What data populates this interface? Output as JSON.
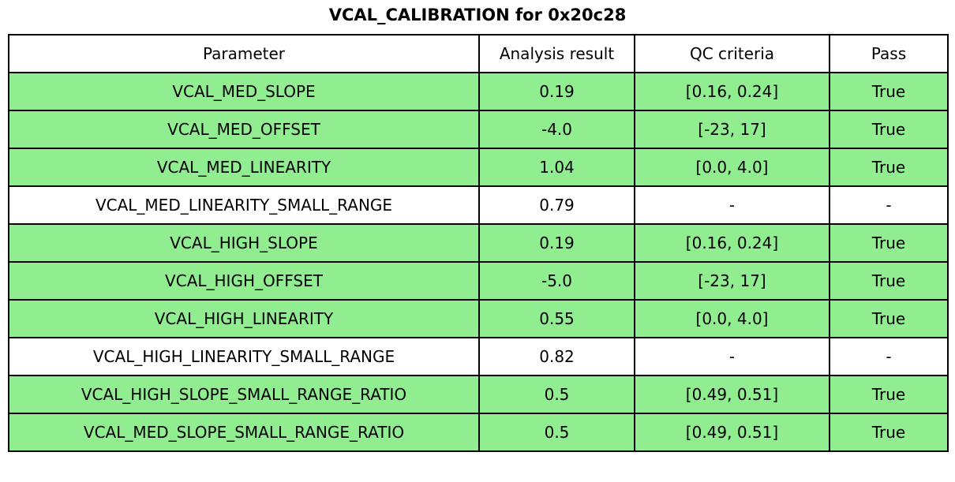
{
  "title": "VCAL_CALIBRATION for 0x20c28",
  "table": {
    "columns": [
      "Parameter",
      "Analysis result",
      "QC criteria",
      "Pass"
    ],
    "rows": [
      {
        "parameter": "VCAL_MED_SLOPE",
        "result": "0.19",
        "criteria": "[0.16, 0.24]",
        "pass": "True",
        "highlight": true
      },
      {
        "parameter": "VCAL_MED_OFFSET",
        "result": "-4.0",
        "criteria": "[-23, 17]",
        "pass": "True",
        "highlight": true
      },
      {
        "parameter": "VCAL_MED_LINEARITY",
        "result": "1.04",
        "criteria": "[0.0, 4.0]",
        "pass": "True",
        "highlight": true
      },
      {
        "parameter": "VCAL_MED_LINEARITY_SMALL_RANGE",
        "result": "0.79",
        "criteria": "-",
        "pass": "-",
        "highlight": false
      },
      {
        "parameter": "VCAL_HIGH_SLOPE",
        "result": "0.19",
        "criteria": "[0.16, 0.24]",
        "pass": "True",
        "highlight": true
      },
      {
        "parameter": "VCAL_HIGH_OFFSET",
        "result": "-5.0",
        "criteria": "[-23, 17]",
        "pass": "True",
        "highlight": true
      },
      {
        "parameter": "VCAL_HIGH_LINEARITY",
        "result": "0.55",
        "criteria": "[0.0, 4.0]",
        "pass": "True",
        "highlight": true
      },
      {
        "parameter": "VCAL_HIGH_LINEARITY_SMALL_RANGE",
        "result": "0.82",
        "criteria": "-",
        "pass": "-",
        "highlight": false
      },
      {
        "parameter": "VCAL_HIGH_SLOPE_SMALL_RANGE_RATIO",
        "result": "0.5",
        "criteria": "[0.49, 0.51]",
        "pass": "True",
        "highlight": true
      },
      {
        "parameter": "VCAL_MED_SLOPE_SMALL_RANGE_RATIO",
        "result": "0.5",
        "criteria": "[0.49, 0.51]",
        "pass": "True",
        "highlight": true
      }
    ]
  },
  "colors": {
    "pass_row_green": "#90ee90",
    "neutral_row_white": "#ffffff",
    "border_black": "#000000"
  },
  "chart_data": {
    "type": "table",
    "title": "VCAL_CALIBRATION for 0x20c28",
    "columns": [
      "Parameter",
      "Analysis result",
      "QC criteria",
      "Pass"
    ],
    "rows": [
      [
        "VCAL_MED_SLOPE",
        "0.19",
        "[0.16, 0.24]",
        "True"
      ],
      [
        "VCAL_MED_OFFSET",
        "-4.0",
        "[-23, 17]",
        "True"
      ],
      [
        "VCAL_MED_LINEARITY",
        "1.04",
        "[0.0, 4.0]",
        "True"
      ],
      [
        "VCAL_MED_LINEARITY_SMALL_RANGE",
        "0.79",
        "-",
        "-"
      ],
      [
        "VCAL_HIGH_SLOPE",
        "0.19",
        "[0.16, 0.24]",
        "True"
      ],
      [
        "VCAL_HIGH_OFFSET",
        "-5.0",
        "[-23, 17]",
        "True"
      ],
      [
        "VCAL_HIGH_LINEARITY",
        "0.55",
        "[0.0, 4.0]",
        "True"
      ],
      [
        "VCAL_HIGH_LINEARITY_SMALL_RANGE",
        "0.82",
        "-",
        "-"
      ],
      [
        "VCAL_HIGH_SLOPE_SMALL_RANGE_RATIO",
        "0.5",
        "[0.49, 0.51]",
        "True"
      ],
      [
        "VCAL_MED_SLOPE_SMALL_RANGE_RATIO",
        "0.5",
        "[0.49, 0.51]",
        "True"
      ]
    ],
    "row_highlighted_green": [
      true,
      true,
      true,
      false,
      true,
      true,
      true,
      false,
      true,
      true
    ],
    "layout_hints": {
      "title_position": "top-center",
      "header_background": "#ffffff",
      "pass_row_background": "#90ee90",
      "grid": "all-borders-black"
    }
  }
}
